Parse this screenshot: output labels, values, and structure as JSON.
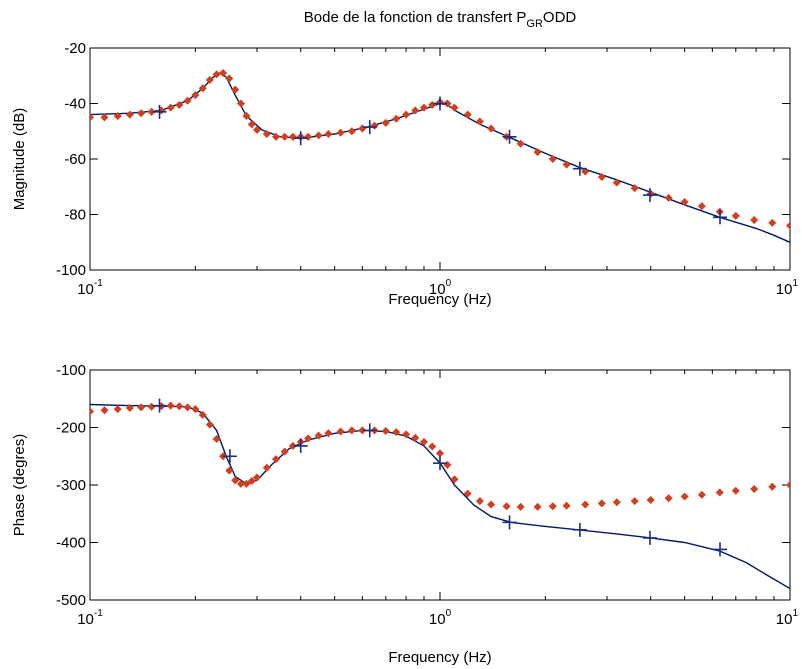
{
  "figure": {
    "title_main": "Bode de la fonction de transfert P",
    "title_sub": "GR",
    "title_tail": "ODD"
  },
  "chart_data": [
    {
      "type": "line",
      "xscale": "log",
      "xlim": [
        0.1,
        10
      ],
      "xticks": [
        {
          "value": 0.1,
          "base": "10",
          "exp": "-1"
        },
        {
          "value": 1,
          "base": "10",
          "exp": "0"
        },
        {
          "value": 10,
          "base": "10",
          "exp": "1"
        }
      ],
      "xlabel": "Frequency (Hz)",
      "ylabel": "Magnitude (dB)",
      "ylim": [
        -100,
        -20
      ],
      "yticks": [
        -20,
        -40,
        -60,
        -80,
        -100
      ],
      "grid": false,
      "series": [
        {
          "role": "fit",
          "style": "solid-line",
          "color": "#001a66",
          "x": [
            0.1,
            0.13,
            0.16,
            0.19,
            0.21,
            0.225,
            0.235,
            0.245,
            0.26,
            0.28,
            0.31,
            0.35,
            0.4,
            0.5,
            0.62,
            0.75,
            0.88,
            0.95,
            1.0,
            1.05,
            1.12,
            1.3,
            1.6,
            2.0,
            2.5,
            3.2,
            4.0,
            5.0,
            6.3,
            8.0,
            9.0,
            10.0
          ],
          "y": [
            -44,
            -43.5,
            -42.5,
            -39,
            -34.5,
            -30.5,
            -29,
            -30.5,
            -37,
            -44.5,
            -49.5,
            -52,
            -52.5,
            -51,
            -48.5,
            -45.5,
            -42.5,
            -41,
            -40,
            -40.5,
            -43,
            -47.5,
            -52.5,
            -58,
            -63,
            -67.5,
            -72,
            -76.5,
            -81,
            -85,
            -87.5,
            -90
          ]
        },
        {
          "role": "measured",
          "style": "diamond-markers",
          "color": "#d04020",
          "x": [
            0.1,
            0.11,
            0.12,
            0.13,
            0.14,
            0.15,
            0.16,
            0.17,
            0.18,
            0.19,
            0.2,
            0.21,
            0.22,
            0.23,
            0.24,
            0.25,
            0.26,
            0.27,
            0.28,
            0.29,
            0.3,
            0.32,
            0.34,
            0.36,
            0.38,
            0.4,
            0.42,
            0.45,
            0.48,
            0.52,
            0.56,
            0.6,
            0.65,
            0.7,
            0.75,
            0.8,
            0.85,
            0.9,
            0.95,
            1.0,
            1.05,
            1.1,
            1.2,
            1.3,
            1.4,
            1.55,
            1.7,
            1.9,
            2.1,
            2.3,
            2.6,
            2.9,
            3.2,
            3.6,
            4.0,
            4.5,
            5.0,
            5.6,
            6.3,
            7.0,
            7.9,
            8.9,
            10.0
          ],
          "y": [
            -45,
            -45,
            -44.5,
            -44,
            -43.5,
            -43,
            -42.5,
            -41.5,
            -40.5,
            -39,
            -37,
            -34.5,
            -31.5,
            -29.5,
            -29,
            -31,
            -35,
            -40,
            -44.5,
            -47.5,
            -49.5,
            -51,
            -52,
            -52,
            -52,
            -52,
            -52,
            -51.5,
            -51,
            -50.5,
            -50,
            -49,
            -48,
            -47,
            -45.5,
            -44,
            -42.5,
            -41.5,
            -40.5,
            -39.5,
            -40,
            -41.5,
            -44,
            -46.5,
            -49,
            -52,
            -54.5,
            -57.5,
            -60,
            -62,
            -64.5,
            -66.5,
            -68.5,
            -70.5,
            -72.5,
            -74,
            -75.5,
            -77,
            -79,
            -80.5,
            -82,
            -83,
            -84
          ]
        },
        {
          "role": "points",
          "style": "plus-markers",
          "color": "#1a2f80",
          "x": [
            0.158,
            0.4,
            0.63,
            1.0,
            1.58,
            2.51,
            3.98,
            6.31
          ],
          "y": [
            -43,
            -52.5,
            -48.5,
            -40,
            -52,
            -63.5,
            -73,
            -81
          ]
        }
      ]
    },
    {
      "type": "line",
      "xscale": "log",
      "xlim": [
        0.1,
        10
      ],
      "xticks": [
        {
          "value": 0.1,
          "base": "10",
          "exp": "-1"
        },
        {
          "value": 1,
          "base": "10",
          "exp": "0"
        },
        {
          "value": 10,
          "base": "10",
          "exp": "1"
        }
      ],
      "xlabel": "Frequency (Hz)",
      "ylabel": "Phase (degres)",
      "ylim": [
        -500,
        -100
      ],
      "yticks": [
        -100,
        -200,
        -300,
        -400,
        -500
      ],
      "grid": false,
      "series": [
        {
          "role": "fit",
          "style": "solid-line",
          "color": "#001a66",
          "x": [
            0.1,
            0.13,
            0.16,
            0.19,
            0.21,
            0.23,
            0.245,
            0.26,
            0.28,
            0.3,
            0.33,
            0.37,
            0.42,
            0.5,
            0.6,
            0.7,
            0.8,
            0.9,
            1.0,
            1.1,
            1.25,
            1.4,
            1.6,
            2.0,
            2.5,
            3.2,
            4.0,
            5.0,
            6.3,
            7.5,
            8.5,
            10.0
          ],
          "y": [
            -160,
            -162,
            -163,
            -164,
            -175,
            -205,
            -250,
            -285,
            -298,
            -292,
            -265,
            -237,
            -222,
            -210,
            -205,
            -207,
            -215,
            -232,
            -262,
            -300,
            -335,
            -355,
            -365,
            -372,
            -378,
            -385,
            -392,
            -400,
            -415,
            -435,
            -455,
            -480
          ]
        },
        {
          "role": "measured",
          "style": "diamond-markers",
          "color": "#d04020",
          "x": [
            0.1,
            0.11,
            0.12,
            0.13,
            0.14,
            0.15,
            0.16,
            0.17,
            0.18,
            0.19,
            0.2,
            0.21,
            0.22,
            0.23,
            0.24,
            0.25,
            0.26,
            0.27,
            0.28,
            0.29,
            0.3,
            0.32,
            0.34,
            0.36,
            0.38,
            0.4,
            0.42,
            0.45,
            0.48,
            0.52,
            0.56,
            0.6,
            0.65,
            0.7,
            0.75,
            0.8,
            0.85,
            0.9,
            0.95,
            1.0,
            1.05,
            1.1,
            1.2,
            1.3,
            1.4,
            1.55,
            1.7,
            1.9,
            2.1,
            2.3,
            2.6,
            2.9,
            3.2,
            3.6,
            4.0,
            4.5,
            5.0,
            5.6,
            6.3,
            7.0,
            7.9,
            8.9,
            10.0
          ],
          "y": [
            -172,
            -170,
            -168,
            -166,
            -165,
            -164,
            -163,
            -162,
            -163,
            -165,
            -168,
            -178,
            -195,
            -220,
            -250,
            -275,
            -292,
            -298,
            -298,
            -293,
            -287,
            -270,
            -255,
            -242,
            -232,
            -225,
            -219,
            -214,
            -210,
            -207,
            -205,
            -205,
            -205,
            -206,
            -208,
            -212,
            -218,
            -225,
            -233,
            -245,
            -265,
            -290,
            -315,
            -328,
            -334,
            -337,
            -338,
            -338,
            -337,
            -336,
            -334,
            -332,
            -330,
            -328,
            -326,
            -323,
            -320,
            -317,
            -313,
            -310,
            -307,
            -303,
            -300
          ]
        },
        {
          "role": "points",
          "style": "plus-markers",
          "color": "#1a2f80",
          "x": [
            0.158,
            0.251,
            0.4,
            0.63,
            1.0,
            1.58,
            2.51,
            3.98,
            6.31
          ],
          "y": [
            -162,
            -250,
            -232,
            -205,
            -262,
            -365,
            -378,
            -392,
            -412
          ]
        }
      ]
    }
  ]
}
